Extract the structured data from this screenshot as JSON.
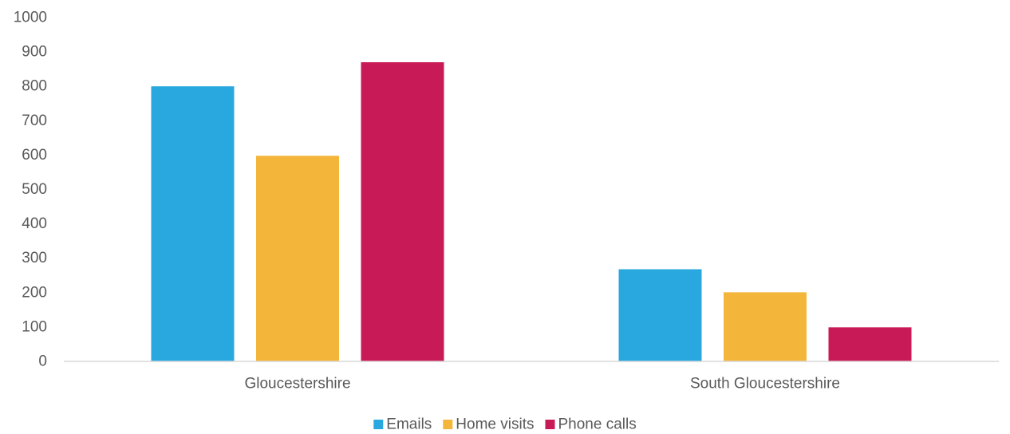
{
  "chart_data": {
    "type": "bar",
    "title": "",
    "xlabel": "",
    "ylabel": "",
    "categories": [
      "Gloucestershire",
      "South Gloucestershire"
    ],
    "series": [
      {
        "name": "Emails",
        "color": "#29a8e0",
        "values": [
          800,
          268
        ]
      },
      {
        "name": "Home visits",
        "color": "#f4b63a",
        "values": [
          598,
          201
        ]
      },
      {
        "name": "Phone calls",
        "color": "#c81a56",
        "values": [
          870,
          99
        ]
      }
    ],
    "ylim": [
      0,
      1000
    ],
    "yticks": [
      "0",
      "100",
      "200",
      "300",
      "400",
      "500",
      "600",
      "700",
      "800",
      "900",
      "1000"
    ],
    "grid": false,
    "legend": "bottom"
  }
}
